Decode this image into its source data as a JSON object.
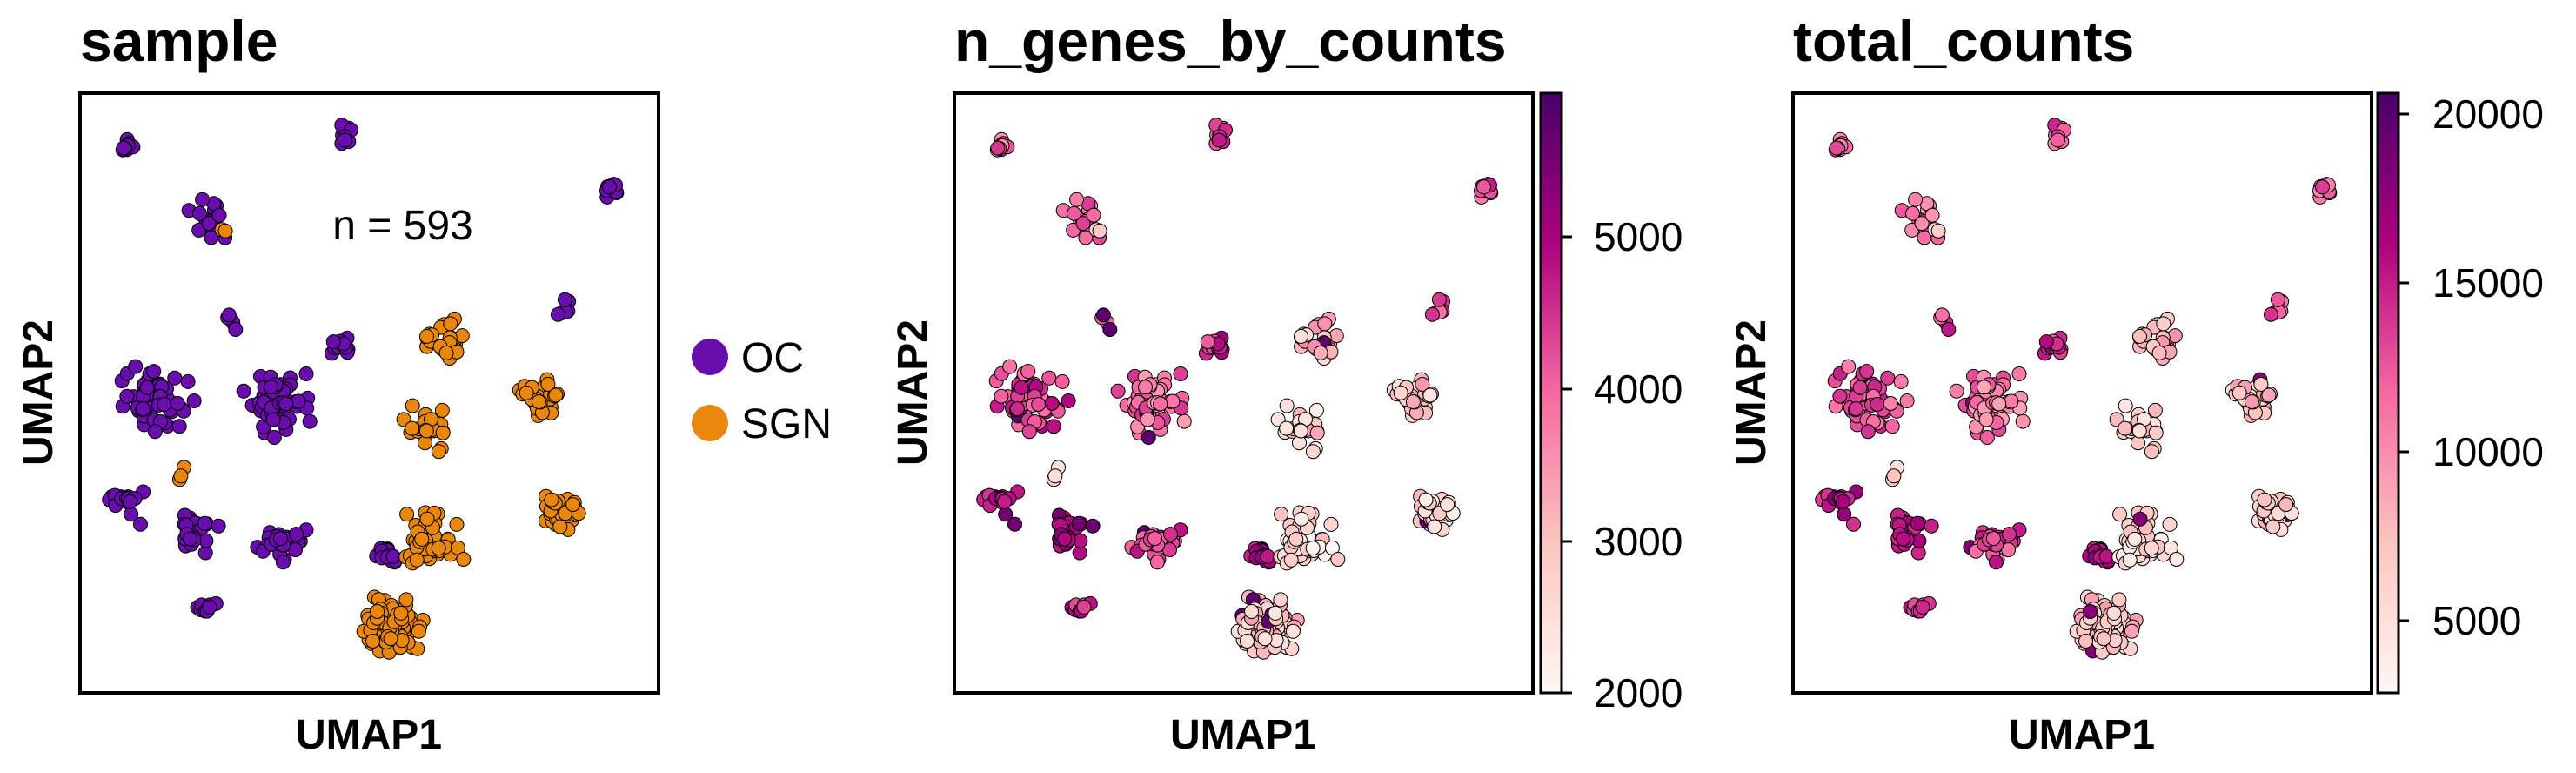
{
  "panels": [
    {
      "title": "sample",
      "xlabel": "UMAP1",
      "ylabel": "UMAP2",
      "annotation": "n = 593",
      "legend": [
        {
          "label": "OC",
          "color": "#6a0dad"
        },
        {
          "label": "SGN",
          "color": "#e8870c"
        }
      ]
    },
    {
      "title": "n_genes_by_counts",
      "xlabel": "UMAP1",
      "ylabel": "UMAP2",
      "colorbar": {
        "ticks": [
          "5000",
          "4000",
          "3000",
          "2000"
        ],
        "min": 2000,
        "max": 5800
      }
    },
    {
      "title": "total_counts",
      "xlabel": "UMAP1",
      "ylabel": "UMAP2",
      "colorbar": {
        "ticks": [
          "20000",
          "15000",
          "10000",
          "5000"
        ],
        "min": 2800,
        "max": 20500
      }
    }
  ],
  "chart_data": [
    {
      "type": "scatter",
      "title": "sample",
      "xlabel": "UMAP1",
      "ylabel": "UMAP2",
      "n_points": 593,
      "series": [
        {
          "name": "OC",
          "color": "#6a0dad"
        },
        {
          "name": "SGN",
          "color": "#e8870c"
        }
      ],
      "clusters": [
        {
          "series": "OC",
          "x": 0.08,
          "y": 0.91,
          "n": 10
        },
        {
          "series": "OC",
          "x": 0.46,
          "y": 0.93,
          "n": 14
        },
        {
          "series": "OC",
          "x": 0.92,
          "y": 0.84,
          "n": 12
        },
        {
          "series": "OC",
          "x": 0.22,
          "y": 0.79,
          "n": 16
        },
        {
          "series": "OC",
          "x": 0.83,
          "y": 0.64,
          "n": 6
        },
        {
          "series": "OC",
          "x": 0.13,
          "y": 0.49,
          "n": 60
        },
        {
          "series": "OC",
          "x": 0.34,
          "y": 0.49,
          "n": 55
        },
        {
          "series": "OC",
          "x": 0.45,
          "y": 0.58,
          "n": 14
        },
        {
          "series": "OC",
          "x": 0.08,
          "y": 0.32,
          "n": 16
        },
        {
          "series": "OC",
          "x": 0.2,
          "y": 0.27,
          "n": 26
        },
        {
          "series": "OC",
          "x": 0.35,
          "y": 0.25,
          "n": 32
        },
        {
          "series": "OC",
          "x": 0.53,
          "y": 0.23,
          "n": 14
        },
        {
          "series": "OC",
          "x": 0.22,
          "y": 0.14,
          "n": 10
        },
        {
          "series": "OC",
          "x": 0.26,
          "y": 0.62,
          "n": 4
        },
        {
          "series": "SGN",
          "x": 0.63,
          "y": 0.59,
          "n": 26
        },
        {
          "series": "SGN",
          "x": 0.8,
          "y": 0.49,
          "n": 30
        },
        {
          "series": "SGN",
          "x": 0.6,
          "y": 0.44,
          "n": 22
        },
        {
          "series": "SGN",
          "x": 0.83,
          "y": 0.3,
          "n": 40
        },
        {
          "series": "SGN",
          "x": 0.6,
          "y": 0.25,
          "n": 45
        },
        {
          "series": "SGN",
          "x": 0.54,
          "y": 0.11,
          "n": 90
        },
        {
          "series": "SGN",
          "x": 0.18,
          "y": 0.36,
          "n": 3
        },
        {
          "series": "SGN",
          "x": 0.25,
          "y": 0.77,
          "n": 2
        }
      ]
    },
    {
      "type": "scatter",
      "title": "n_genes_by_counts",
      "xlabel": "UMAP1",
      "ylabel": "UMAP2",
      "colormap": "RdPu",
      "color_range": [
        2000,
        5800
      ],
      "colorbar_ticks": [
        2000,
        3000,
        4000,
        5000
      ]
    },
    {
      "type": "scatter",
      "title": "total_counts",
      "xlabel": "UMAP1",
      "ylabel": "UMAP2",
      "colormap": "RdPu",
      "color_range": [
        2800,
        20500
      ],
      "colorbar_ticks": [
        5000,
        10000,
        15000,
        20000
      ]
    }
  ]
}
